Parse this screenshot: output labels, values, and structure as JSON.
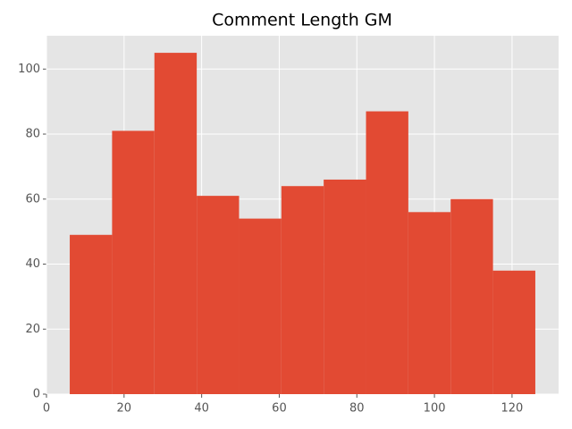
{
  "chart_data": {
    "type": "histogram",
    "title": "Comment Length  GM",
    "bins": [
      6,
      16.91,
      27.82,
      38.73,
      49.64,
      60.55,
      71.45,
      82.36,
      93.27,
      104.18,
      115.09,
      126
    ],
    "values": [
      49,
      81,
      105,
      61,
      54,
      64,
      66,
      87,
      56,
      60,
      38
    ],
    "color": "#e24a33",
    "xlim": [
      0,
      132
    ],
    "xticks": [
      0,
      20,
      40,
      60,
      80,
      100,
      120
    ],
    "ylim": [
      0,
      110.25
    ],
    "yticks": [
      0,
      20,
      40,
      60,
      80,
      100
    ],
    "grid": true
  }
}
